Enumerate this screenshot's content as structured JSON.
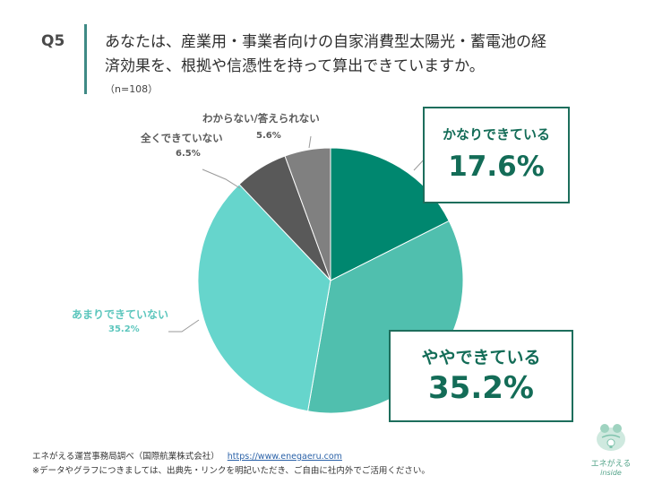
{
  "question": {
    "number": "Q5",
    "text_line1": "あなたは、産業用・事業者向けの自家消費型太陽光・蓄電池の経",
    "text_line2": "済効果を、根拠や信憑性を持って算出できていますか。",
    "sample": "（n=108）"
  },
  "chart_data": {
    "type": "pie",
    "title": "あなたは、産業用・事業者向けの自家消費型太陽光・蓄電池の経済効果を、根拠や信憑性を持って算出できていますか。",
    "n": 108,
    "categories": [
      "かなりできている",
      "ややできている",
      "あまりできていない",
      "全くできていない",
      "わからない/答えられない"
    ],
    "values": [
      17.6,
      35.2,
      35.2,
      6.5,
      5.6
    ],
    "unit": "%",
    "colors": [
      "#00876f",
      "#50bfae",
      "#66d5cc",
      "#595959",
      "#808080"
    ],
    "start_angle": "12 o'clock, clockwise",
    "legend": "none (callout labels)"
  },
  "labels": {
    "kanari": {
      "label": "かなりできている",
      "value": "17.6%"
    },
    "yaya": {
      "label": "ややできている",
      "value": "35.2%"
    },
    "amari": {
      "label": "あまりできていない",
      "value": "35.2%"
    },
    "mattaku": {
      "label": "全くできていない",
      "value": "6.5%"
    },
    "wakaranai": {
      "label": "わからない/答えられない",
      "value": "5.6%"
    }
  },
  "footer": {
    "source": "エネがえる運営事務局調べ（国際航業株式会社）",
    "url": "https://www.enegaeru.com",
    "note": "※データやグラフにつきましては、出典先・リンクを明記いただき、ご自由に社内外でご活用ください。"
  },
  "logo": {
    "name": "エネがえる",
    "sub": "inside"
  }
}
